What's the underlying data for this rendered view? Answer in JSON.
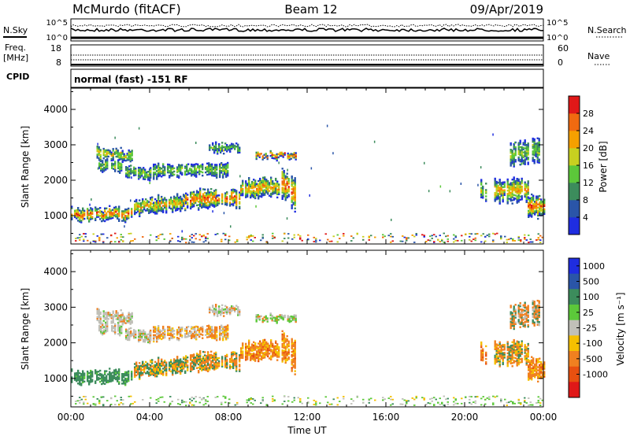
{
  "header": {
    "station": "McMurdo (fitACF)",
    "beam": "Beam 12",
    "date": "09/Apr/2019"
  },
  "top_panels": {
    "nsky_label": "N.Sky",
    "nsky_ticks": [
      "10^5",
      "10^0"
    ],
    "nsearch_label": "N.Search",
    "nsearch_ticks": [
      "10^5",
      "10^0"
    ],
    "freq_label_line1": "Freq.",
    "freq_label_line2": "[MHz]",
    "freq_ticks": [
      "18",
      "8"
    ],
    "nave_label": "Nave",
    "nave_ticks": [
      "60",
      "0"
    ],
    "cpid_label": "CPID",
    "cpid_text": "normal (fast) -151 RF"
  },
  "chart_data": [
    {
      "type": "heatmap",
      "name": "power",
      "ylabel": "Slant Range [km]",
      "yticks": [
        "1000",
        "2000",
        "3000",
        "4000"
      ],
      "ylim": [
        200,
        4600
      ],
      "colorbar_label": "Power [dB]",
      "colorbar_ticks": [
        "4",
        "8",
        "12",
        "16",
        "20",
        "24",
        "28"
      ],
      "colors": [
        "#1f2de0",
        "#2a55a8",
        "#3c8c5c",
        "#5cc83a",
        "#c8d020",
        "#f5a000",
        "#f06a10",
        "#e01818"
      ]
    },
    {
      "type": "heatmap",
      "name": "velocity",
      "ylabel": "Slant Range [km]",
      "yticks": [
        "1000",
        "2000",
        "3000",
        "4000"
      ],
      "ylim": [
        200,
        4600
      ],
      "colorbar_label": "Velocity [m s⁻¹]",
      "colorbar_ticks": [
        "1000",
        "500",
        "100",
        "25",
        "-25",
        "-100",
        "-500",
        "-1000"
      ],
      "colors": [
        "#1f2de0",
        "#2a55a8",
        "#3c8c5c",
        "#5cc83a",
        "#c0c0b8",
        "#f5c000",
        "#f08020",
        "#e85010",
        "#e01818"
      ]
    }
  ],
  "xaxis": {
    "ticks": [
      "00:00",
      "04:00",
      "08:00",
      "12:00",
      "16:00",
      "20:00",
      "00:00"
    ],
    "label": "Time UT"
  }
}
